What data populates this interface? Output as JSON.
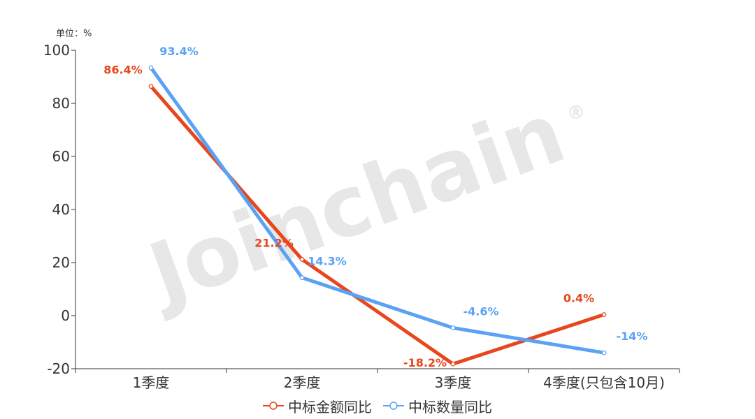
{
  "chart_data": {
    "type": "line",
    "unit_label": "单位：%",
    "categories": [
      "1季度",
      "2季度",
      "3季度",
      "4季度(只包含10月)"
    ],
    "y_ticks": [
      "100",
      "80",
      "60",
      "40",
      "20",
      "0",
      "-20"
    ],
    "ylim": [
      -20,
      100
    ],
    "grid": false,
    "legend_position": "bottom-center",
    "watermark": "Joinchain",
    "watermark_mark": "®",
    "series": [
      {
        "name": "中标金额同比",
        "color": "#e8461c",
        "values": [
          86.4,
          21.2,
          -18.2,
          0.4
        ],
        "labels": [
          "86.4%",
          "21.2%",
          "-18.2%",
          "0.4%"
        ]
      },
      {
        "name": "中标数量同比",
        "color": "#5aa2f5",
        "values": [
          93.4,
          14.3,
          -4.6,
          -14
        ],
        "labels": [
          "93.4%",
          "14.3%",
          "-4.6%",
          "-14%"
        ]
      }
    ]
  }
}
